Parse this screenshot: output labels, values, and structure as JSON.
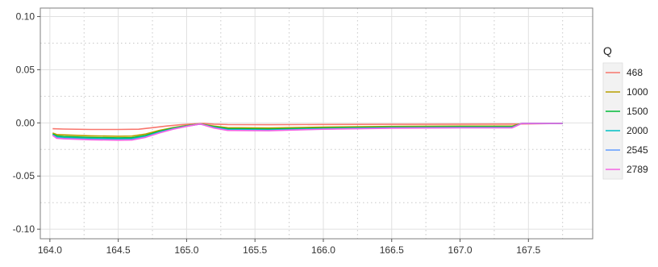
{
  "chart_data": {
    "type": "line",
    "xlim": [
      163.93,
      167.97
    ],
    "ylim": [
      -0.109,
      0.108
    ],
    "x_ticks": [
      "164.0",
      "164.5",
      "165.0",
      "165.5",
      "166.0",
      "166.5",
      "167.0",
      "167.5"
    ],
    "x_tick_values": [
      164.0,
      164.5,
      165.0,
      165.5,
      166.0,
      166.5,
      167.0,
      167.5
    ],
    "y_ticks": [
      "0.10",
      "0.05",
      "0.00",
      "-0.05",
      "-0.10"
    ],
    "y_tick_values": [
      0.1,
      0.05,
      0.0,
      -0.05,
      -0.1
    ],
    "grid": true,
    "grid_style": "major solid light gray, minor dotted",
    "legend_position": "right",
    "legend": {
      "title": "Q"
    },
    "series": [
      {
        "name": "468",
        "color": "#F8766D",
        "points": [
          [
            164.02,
            -0.0055
          ],
          [
            164.1,
            -0.0058
          ],
          [
            164.3,
            -0.0062
          ],
          [
            164.5,
            -0.0062
          ],
          [
            164.65,
            -0.006
          ],
          [
            164.75,
            -0.0045
          ],
          [
            164.85,
            -0.003
          ],
          [
            164.95,
            -0.0018
          ],
          [
            165.05,
            -0.001
          ],
          [
            165.12,
            -0.0005
          ],
          [
            165.2,
            -0.0012
          ],
          [
            165.3,
            -0.0016
          ],
          [
            165.6,
            -0.0017
          ],
          [
            166.0,
            -0.0015
          ],
          [
            166.5,
            -0.0013
          ],
          [
            167.0,
            -0.0012
          ],
          [
            167.4,
            -0.0011
          ],
          [
            167.75,
            -0.0005
          ]
        ]
      },
      {
        "name": "1000",
        "color": "#B79F00",
        "points": [
          [
            164.02,
            -0.0095
          ],
          [
            164.05,
            -0.011
          ],
          [
            164.1,
            -0.0113
          ],
          [
            164.3,
            -0.0122
          ],
          [
            164.5,
            -0.0126
          ],
          [
            164.6,
            -0.0124
          ],
          [
            164.7,
            -0.0105
          ],
          [
            164.8,
            -0.007
          ],
          [
            164.9,
            -0.0045
          ],
          [
            165.0,
            -0.0025
          ],
          [
            165.1,
            -0.001
          ],
          [
            165.2,
            -0.003
          ],
          [
            165.3,
            -0.0045
          ],
          [
            165.6,
            -0.0048
          ],
          [
            166.0,
            -0.004
          ],
          [
            166.5,
            -0.0033
          ],
          [
            167.0,
            -0.003
          ],
          [
            167.38,
            -0.003
          ],
          [
            167.45,
            -0.0006
          ],
          [
            167.75,
            -0.0005
          ]
        ]
      },
      {
        "name": "1500",
        "color": "#00BA38",
        "points": [
          [
            164.02,
            -0.0105
          ],
          [
            164.05,
            -0.0122
          ],
          [
            164.1,
            -0.0128
          ],
          [
            164.3,
            -0.0137
          ],
          [
            164.5,
            -0.0141
          ],
          [
            164.6,
            -0.0139
          ],
          [
            164.7,
            -0.0118
          ],
          [
            164.8,
            -0.008
          ],
          [
            164.9,
            -0.005
          ],
          [
            165.0,
            -0.0028
          ],
          [
            165.1,
            -0.001
          ],
          [
            165.2,
            -0.0036
          ],
          [
            165.3,
            -0.0055
          ],
          [
            165.6,
            -0.0058
          ],
          [
            166.0,
            -0.0048
          ],
          [
            166.5,
            -0.004
          ],
          [
            167.0,
            -0.0037
          ],
          [
            167.38,
            -0.0037
          ],
          [
            167.45,
            -0.0006
          ],
          [
            167.75,
            -0.0005
          ]
        ]
      },
      {
        "name": "2000",
        "color": "#00BFC4",
        "points": [
          [
            164.02,
            -0.0112
          ],
          [
            164.05,
            -0.0132
          ],
          [
            164.1,
            -0.0138
          ],
          [
            164.3,
            -0.0147
          ],
          [
            164.5,
            -0.0151
          ],
          [
            164.6,
            -0.0149
          ],
          [
            164.7,
            -0.0127
          ],
          [
            164.8,
            -0.0087
          ],
          [
            164.9,
            -0.0055
          ],
          [
            165.0,
            -0.003
          ],
          [
            165.1,
            -0.001
          ],
          [
            165.2,
            -0.0042
          ],
          [
            165.3,
            -0.0063
          ],
          [
            165.6,
            -0.0066
          ],
          [
            166.0,
            -0.0054
          ],
          [
            166.5,
            -0.0045
          ],
          [
            167.0,
            -0.0042
          ],
          [
            167.38,
            -0.0042
          ],
          [
            167.45,
            -0.0006
          ],
          [
            167.75,
            -0.0005
          ]
        ]
      },
      {
        "name": "2545",
        "color": "#619CFF",
        "points": [
          [
            164.02,
            -0.0116
          ],
          [
            164.05,
            -0.014
          ],
          [
            164.1,
            -0.0146
          ],
          [
            164.3,
            -0.0155
          ],
          [
            164.5,
            -0.0159
          ],
          [
            164.6,
            -0.0157
          ],
          [
            164.7,
            -0.0133
          ],
          [
            164.8,
            -0.0092
          ],
          [
            164.9,
            -0.0058
          ],
          [
            165.0,
            -0.0032
          ],
          [
            165.1,
            -0.001
          ],
          [
            165.2,
            -0.0046
          ],
          [
            165.3,
            -0.0068
          ],
          [
            165.6,
            -0.0071
          ],
          [
            166.0,
            -0.0058
          ],
          [
            166.5,
            -0.0048
          ],
          [
            167.0,
            -0.0045
          ],
          [
            167.38,
            -0.0045
          ],
          [
            167.45,
            -0.0006
          ],
          [
            167.75,
            -0.0005
          ]
        ]
      },
      {
        "name": "2789",
        "color": "#F564E3",
        "points": [
          [
            164.02,
            -0.0118
          ],
          [
            164.05,
            -0.0145
          ],
          [
            164.1,
            -0.015
          ],
          [
            164.3,
            -0.0159
          ],
          [
            164.5,
            -0.0163
          ],
          [
            164.6,
            -0.0161
          ],
          [
            164.7,
            -0.0136
          ],
          [
            164.8,
            -0.0095
          ],
          [
            164.9,
            -0.006
          ],
          [
            165.0,
            -0.0033
          ],
          [
            165.1,
            -0.001
          ],
          [
            165.2,
            -0.0048
          ],
          [
            165.3,
            -0.0071
          ],
          [
            165.6,
            -0.0074
          ],
          [
            166.0,
            -0.006
          ],
          [
            166.5,
            -0.005
          ],
          [
            167.0,
            -0.0047
          ],
          [
            167.38,
            -0.0047
          ],
          [
            167.45,
            -0.0006
          ],
          [
            167.75,
            -0.0005
          ]
        ]
      }
    ]
  }
}
